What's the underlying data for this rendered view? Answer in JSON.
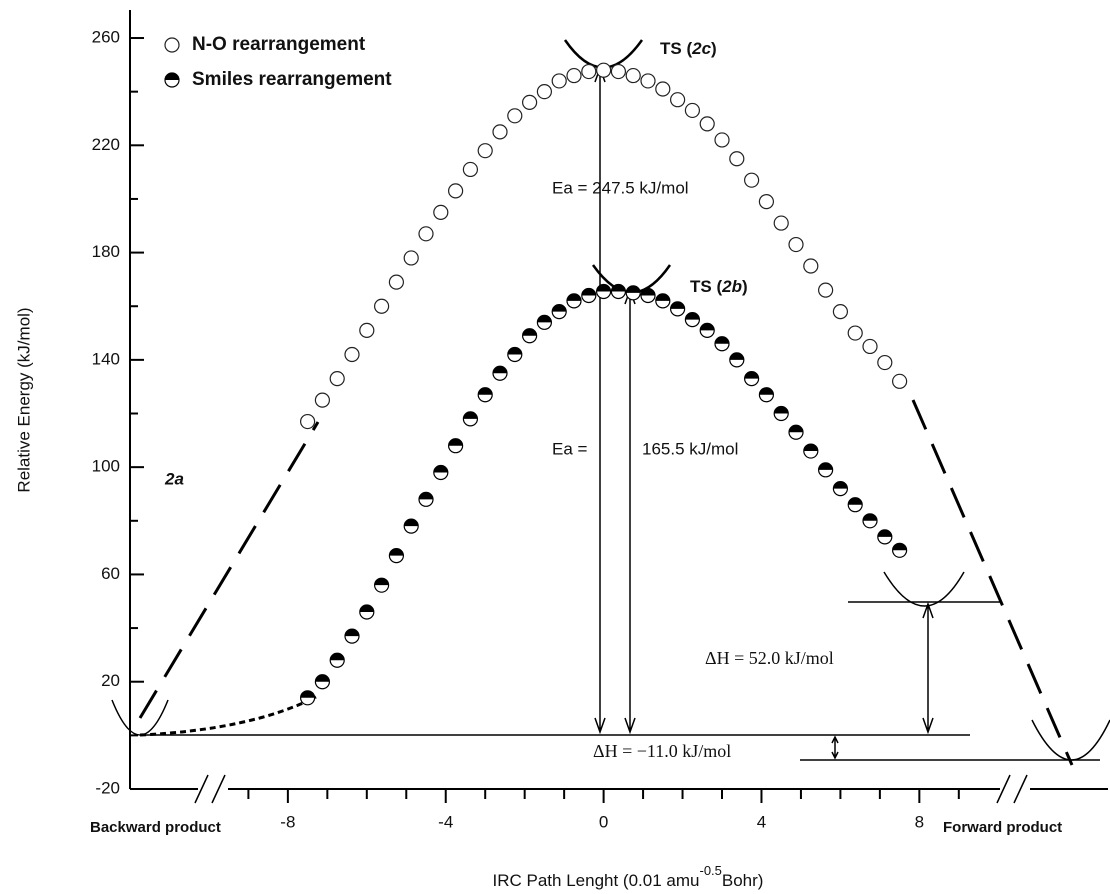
{
  "chart_data": {
    "type": "scatter",
    "ylabel": "Relative Energy (kJ/mol)",
    "xlabel": [
      "IRC Path Lenght (0.01 amu",
      "-0.5",
      "Bohr)"
    ],
    "xlim": [
      -12.0,
      12.4
    ],
    "ylim": [
      -20,
      270
    ],
    "xticks": [
      -8,
      -4,
      0,
      4,
      8
    ],
    "xminorticks": [
      -9,
      -7,
      -6,
      -5,
      -3,
      -2,
      -1,
      1,
      2,
      3,
      5,
      6,
      7,
      9
    ],
    "yticks": [
      -20,
      20,
      60,
      100,
      140,
      180,
      220,
      260
    ],
    "yminorticks": [
      0,
      40,
      80,
      120,
      160,
      200,
      240
    ],
    "x": [
      -7.5,
      -7.125,
      -6.75,
      -6.375,
      -6.0,
      -5.625,
      -5.25,
      -4.875,
      -4.5,
      -4.125,
      -3.75,
      -3.375,
      -3.0,
      -2.625,
      -2.25,
      -1.875,
      -1.5,
      -1.125,
      -0.75,
      -0.375,
      0,
      0.375,
      0.75,
      1.125,
      1.5,
      1.875,
      2.25,
      2.625,
      3.0,
      3.375,
      3.75,
      4.125,
      4.5,
      4.875,
      5.25,
      5.625,
      6.0,
      6.375,
      6.75,
      7.125,
      7.5
    ],
    "series": [
      {
        "name": "N-O rearrangement",
        "marker": "open",
        "color": "#222222",
        "values": [
          117,
          125,
          133,
          142,
          151,
          160,
          169,
          178,
          187,
          195,
          203,
          211,
          218,
          225,
          231,
          236,
          240,
          244,
          246,
          247.5,
          248,
          247.5,
          246,
          244,
          241,
          237,
          233,
          228,
          222,
          215,
          207,
          199,
          191,
          183,
          175,
          166,
          158,
          150,
          145,
          139,
          132
        ]
      },
      {
        "name": "Smiles rearrangement",
        "marker": "half",
        "color": "#000000",
        "values": [
          14,
          20,
          28,
          37,
          46,
          56,
          67,
          78,
          88,
          98,
          108,
          118,
          127,
          135,
          142,
          149,
          154,
          158,
          162,
          164,
          165.5,
          165.5,
          165,
          164,
          162,
          159,
          155,
          151,
          146,
          140,
          133,
          127,
          120,
          113,
          106,
          99,
          92,
          86,
          80,
          74,
          69
        ]
      }
    ],
    "annotations": {
      "ts_2c": [
        "TS (",
        "2c",
        ")"
      ],
      "ts_2b": [
        "TS (",
        "2b",
        ")"
      ],
      "ea_no": "Ea =  247.5 kJ/mol",
      "ea_smiles_left": "Ea =",
      "ea_smiles_right": "165.5 kJ/mol",
      "dh_forward": "ΔH = 52.0 kJ/mol",
      "dh_backward": "ΔH = −11.0 kJ/mol",
      "reactant": "2a",
      "backward": "Backward product",
      "forward": "Forward product"
    }
  }
}
